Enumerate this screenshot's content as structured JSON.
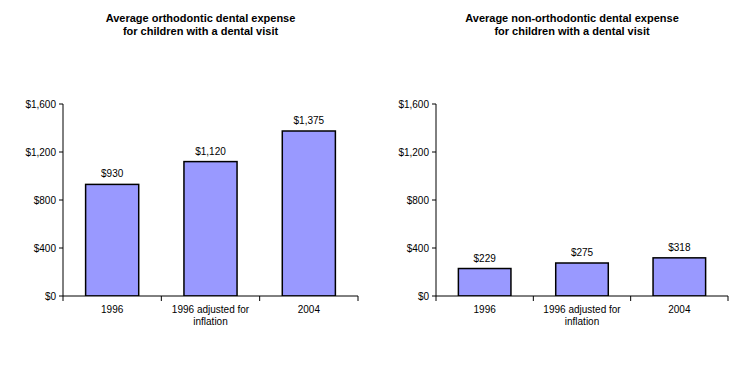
{
  "chart_data": [
    {
      "type": "bar",
      "title": "Average orthodontic dental expense\nfor children with a dental visit",
      "categories": [
        "1996",
        "1996 adjusted for inflation",
        "2004"
      ],
      "values": [
        930,
        1120,
        1375
      ],
      "value_labels": [
        "$930",
        "$1,120",
        "$1,375"
      ],
      "color": "#9999ff",
      "ylim": [
        0,
        1600
      ],
      "yticks": [
        {
          "value": 0,
          "label": "$0"
        },
        {
          "value": 400,
          "label": "$400"
        },
        {
          "value": 800,
          "label": "$800"
        },
        {
          "value": 1200,
          "label": "$1,200"
        },
        {
          "value": 1600,
          "label": "$1,600"
        }
      ],
      "grid": false,
      "data_labels": true
    },
    {
      "type": "bar",
      "title": "Average non-orthodontic dental expense\nfor children with a dental visit",
      "categories": [
        "1996",
        "1996 adjusted for inflation",
        "2004"
      ],
      "values": [
        229,
        275,
        318
      ],
      "value_labels": [
        "$229",
        "$275",
        "$318"
      ],
      "color": "#9999ff",
      "ylim": [
        0,
        1600
      ],
      "yticks": [
        {
          "value": 0,
          "label": "$0"
        },
        {
          "value": 400,
          "label": "$400"
        },
        {
          "value": 800,
          "label": "$800"
        },
        {
          "value": 1200,
          "label": "$1,200"
        },
        {
          "value": 1600,
          "label": "$1,600"
        }
      ],
      "grid": false,
      "data_labels": true
    }
  ]
}
